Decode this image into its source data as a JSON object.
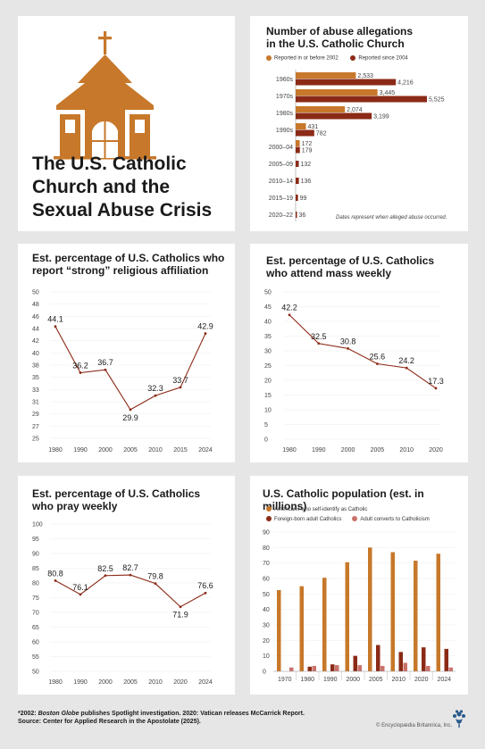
{
  "main_title": [
    "The U.S. Catholic",
    "Church and the",
    "Sexual Abuse Crisis"
  ],
  "colors": {
    "accent": "#c7782a",
    "dark_bar": "#8b2a16",
    "line": "#8b2a16",
    "converts": "#c9726a"
  },
  "icons": {
    "church": "church-icon",
    "logo": "britannica-thistle-icon"
  },
  "footer": {
    "line1_prefix": "*2002: ",
    "line1_italic": "Boston Globe",
    "line1_rest": " publishes Spotlight investigation. 2020: Vatican releases McCarrick Report.",
    "line2": "Source: Center for Applied Research in the Apostolate (2025).",
    "copyright": "© Encyclopædia Britannica, Inc."
  },
  "chart_data": [
    {
      "id": "allegations",
      "type": "bar",
      "orientation": "horizontal",
      "title_lines": [
        "Number of abuse allegations",
        "in the U.S. Catholic Church"
      ],
      "categories": [
        "1960s",
        "1970s",
        "1980s",
        "1990s",
        "2000–04",
        "2005–09",
        "2010–14",
        "2015–19",
        "2020–22"
      ],
      "series": [
        {
          "name": "Reported in or before 2002",
          "values": [
            2533,
            3445,
            2074,
            431,
            172,
            null,
            null,
            null,
            null
          ]
        },
        {
          "name": "Reported since 2004",
          "values": [
            4216,
            5525,
            3199,
            782,
            179,
            132,
            136,
            99,
            36
          ]
        }
      ],
      "value_labels": [
        [
          "2,533",
          "3,445",
          "2,074",
          "431",
          "172",
          "",
          "",
          "",
          ""
        ],
        [
          "4,216",
          "5,525",
          "3,199",
          "782",
          "179",
          "132",
          "136",
          "99",
          "36"
        ]
      ],
      "note": "Dates represent when alleged abuse occurred.",
      "xlim": [
        0,
        5525
      ]
    },
    {
      "id": "strong",
      "type": "line",
      "title_lines": [
        "Est. percentage of U.S. Catholics who",
        "report “strong” religious affiliation"
      ],
      "x": [
        "1980",
        "1990",
        "2000",
        "2005",
        "2010",
        "2015",
        "2024"
      ],
      "values": [
        44.1,
        36.2,
        36.7,
        29.9,
        32.3,
        33.7,
        42.9
      ],
      "value_labels": [
        "44.1",
        "36.2",
        "36.7",
        "29.9",
        "32.3",
        "33.7",
        "42.9"
      ],
      "yticks": [
        "50",
        "48",
        "46",
        "44",
        "42",
        "40",
        "38",
        "35",
        "33",
        "31",
        "29",
        "27",
        "25"
      ],
      "ylim": [
        25,
        50
      ]
    },
    {
      "id": "mass",
      "type": "line",
      "title_lines": [
        "Est. percentage of U.S. Catholics",
        "who attend mass weekly"
      ],
      "x": [
        "1980",
        "1990",
        "2000",
        "2005",
        "2010",
        "2020"
      ],
      "values": [
        42.2,
        32.5,
        30.8,
        25.6,
        24.2,
        17.3
      ],
      "value_labels": [
        "42.2",
        "32.5",
        "30.8",
        "25.6",
        "24.2",
        "17.3"
      ],
      "yticks": [
        "50",
        "45",
        "40",
        "35",
        "30",
        "25",
        "20",
        "15",
        "10",
        "5",
        "0"
      ],
      "ylim": [
        0,
        50
      ]
    },
    {
      "id": "pray",
      "type": "line",
      "title_lines": [
        "Est. percentage of U.S. Catholics",
        "who pray weekly"
      ],
      "x": [
        "1980",
        "1990",
        "2000",
        "2005",
        "2010",
        "2020",
        "2024"
      ],
      "values": [
        80.8,
        76.1,
        82.5,
        82.7,
        79.8,
        71.9,
        76.6
      ],
      "value_labels": [
        "80.8",
        "76.1",
        "82.5",
        "82.7",
        "79.8",
        "71.9",
        "76.6"
      ],
      "yticks": [
        "100",
        "95",
        "90",
        "85",
        "80",
        "75",
        "70",
        "65",
        "60",
        "55",
        "50"
      ],
      "ylim": [
        50,
        100
      ]
    },
    {
      "id": "population",
      "type": "bar",
      "title_lines": [
        "U.S. Catholic population (est. in millions)"
      ],
      "categories": [
        "1970",
        "1980",
        "1990",
        "2000",
        "2005",
        "2010",
        "2020",
        "2024"
      ],
      "series": [
        {
          "name": "Americans who self-identify as Catholic",
          "values": [
            52.5,
            55,
            60.5,
            70.5,
            80,
            77,
            71.5,
            76
          ]
        },
        {
          "name": "Foreign-born adult Catholics",
          "values": [
            null,
            3,
            4.5,
            10,
            17,
            12.5,
            15.5,
            14.5
          ]
        },
        {
          "name": "Adult converts to Catholicism",
          "values": [
            2.5,
            3.5,
            4,
            4,
            3.5,
            5.5,
            3.5,
            2.5
          ]
        }
      ],
      "yticks": [
        "90",
        "80",
        "70",
        "60",
        "50",
        "40",
        "30",
        "20",
        "10",
        "0"
      ],
      "ylim": [
        0,
        90
      ]
    }
  ]
}
